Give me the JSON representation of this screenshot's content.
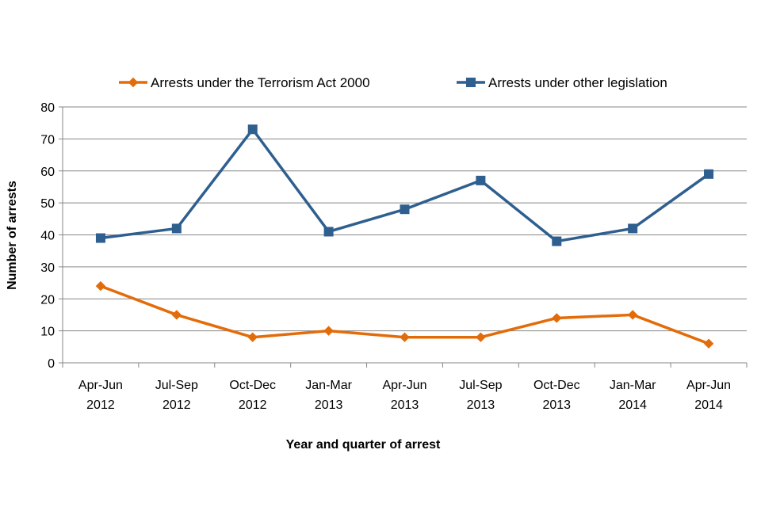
{
  "chart_data": {
    "type": "line",
    "title": "",
    "xlabel": "Year and quarter of arrest",
    "ylabel": "Number of arrests",
    "ylim": [
      0,
      80
    ],
    "yticks": [
      0,
      10,
      20,
      30,
      40,
      50,
      60,
      70,
      80
    ],
    "grid": true,
    "legend_position": "top",
    "categories": [
      [
        "Apr-Jun",
        "2012"
      ],
      [
        "Jul-Sep",
        "2012"
      ],
      [
        "Oct-Dec",
        "2012"
      ],
      [
        "Jan-Mar",
        "2013"
      ],
      [
        "Apr-Jun",
        "2013"
      ],
      [
        "Jul-Sep",
        "2013"
      ],
      [
        "Oct-Dec",
        "2013"
      ],
      [
        "Jan-Mar",
        "2014"
      ],
      [
        "Apr-Jun",
        "2014"
      ]
    ],
    "series": [
      {
        "name": "Arrests under the Terrorism Act 2000",
        "color": "#E36C0A",
        "marker": "diamond",
        "values": [
          24,
          15,
          8,
          10,
          8,
          8,
          14,
          15,
          6
        ]
      },
      {
        "name": "Arrests under other legislation",
        "color": "#2E5F8F",
        "marker": "square",
        "values": [
          39,
          42,
          73,
          41,
          48,
          57,
          38,
          42,
          59
        ]
      }
    ]
  }
}
